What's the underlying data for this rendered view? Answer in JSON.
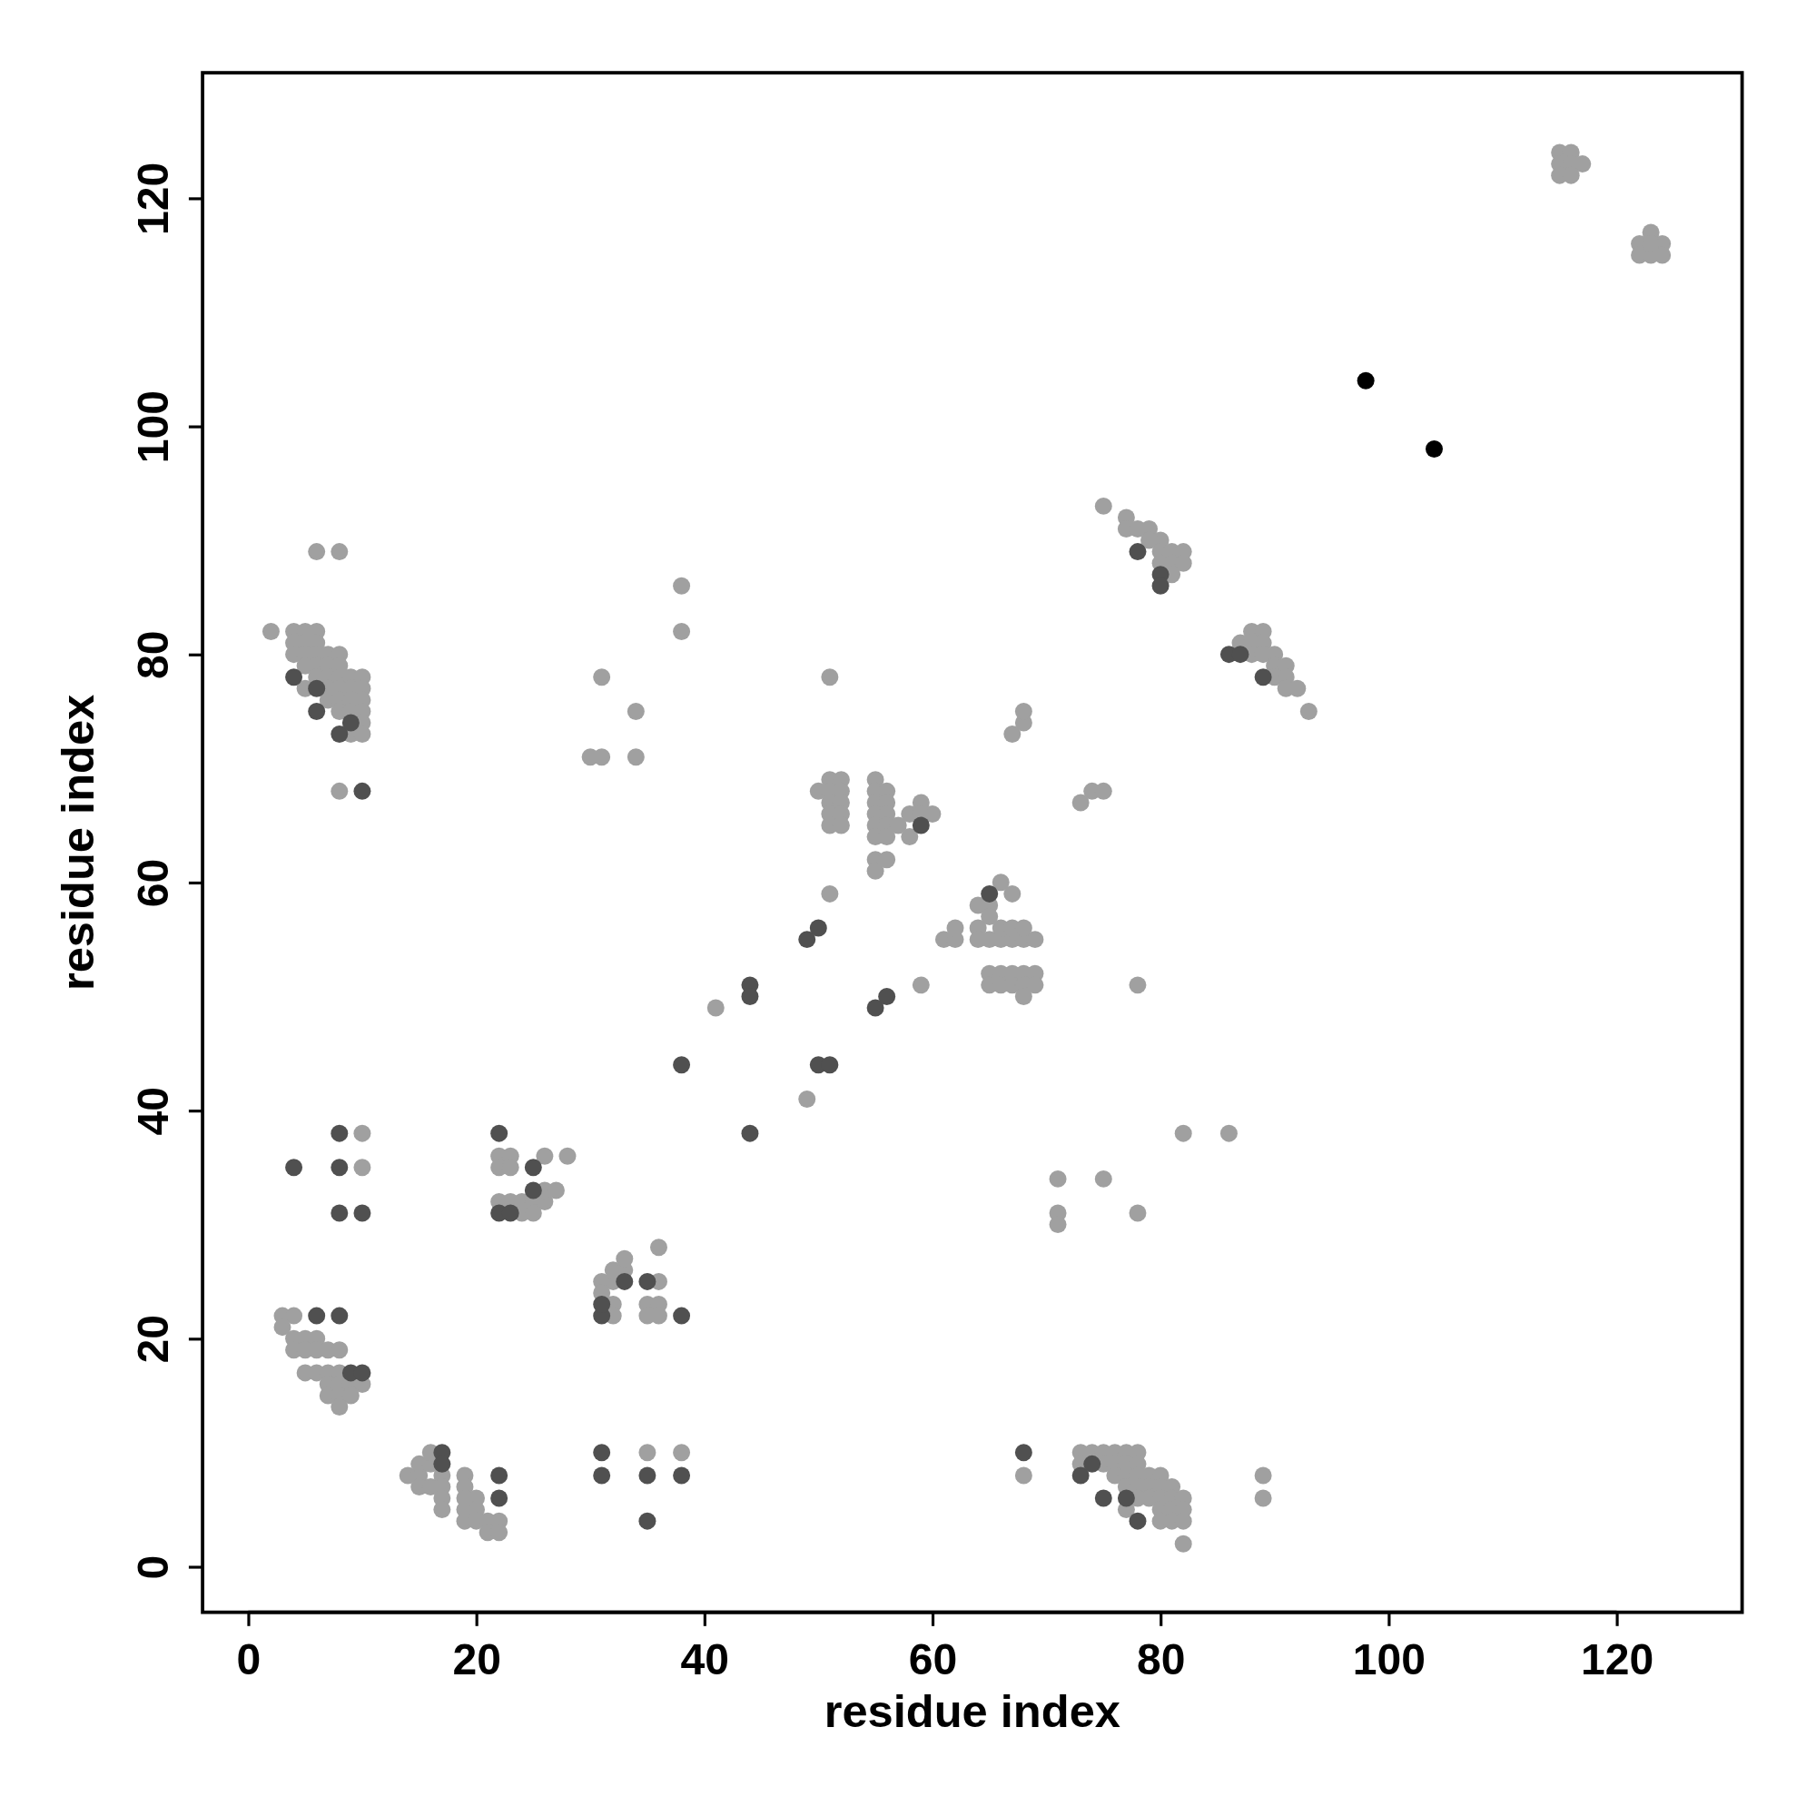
{
  "chart_data": {
    "type": "scatter",
    "xlabel": "residue index",
    "ylabel": "residue index",
    "xlim": [
      -4,
      131
    ],
    "ylim": [
      -4,
      131
    ],
    "xticks": [
      0,
      20,
      40,
      60,
      80,
      100,
      120
    ],
    "yticks": [
      0,
      20,
      40,
      60,
      80,
      100,
      120
    ],
    "marker": "circle",
    "series": [
      {
        "color": "#a0a0a0",
        "x": [
          2,
          4,
          5,
          6,
          4,
          5,
          6,
          4,
          5,
          6,
          7,
          8,
          5,
          6,
          7,
          8,
          6,
          7,
          8,
          9,
          10,
          5,
          7,
          8,
          9,
          10,
          7,
          8,
          9,
          10,
          8,
          9,
          10,
          10,
          9,
          10,
          6,
          8,
          8,
          38,
          38,
          31,
          34,
          30,
          31,
          34,
          51,
          3,
          4,
          3,
          4,
          5,
          6,
          4,
          5,
          6,
          7,
          8,
          5,
          6,
          7,
          8,
          7,
          8,
          9,
          10,
          7,
          8,
          9,
          8,
          10,
          10,
          22,
          23,
          22,
          23,
          26,
          28,
          22,
          23,
          24,
          25,
          26,
          24,
          25,
          26,
          27,
          31,
          32,
          31,
          32,
          33,
          33,
          32,
          32,
          36,
          36,
          35,
          36,
          35,
          36,
          14,
          15,
          15,
          16,
          16,
          15,
          16,
          17,
          17,
          17,
          17,
          19,
          19,
          19,
          20,
          19,
          20,
          19,
          20,
          21,
          22,
          21,
          22,
          35,
          38,
          41,
          49,
          51,
          59,
          50,
          51,
          52,
          51,
          52,
          51,
          52,
          51,
          52,
          51,
          52,
          55,
          55,
          56,
          55,
          56,
          55,
          56,
          55,
          56,
          57,
          55,
          56,
          58,
          58,
          59,
          60,
          59,
          55,
          56,
          55,
          61,
          62,
          62,
          64,
          65,
          66,
          67,
          64,
          64,
          65,
          66,
          67,
          68,
          69,
          65,
          66,
          67,
          68,
          65,
          66,
          67,
          68,
          69,
          65,
          66,
          67,
          68,
          69,
          68,
          67,
          68,
          68,
          73,
          74,
          75,
          78,
          71,
          71,
          71,
          75,
          78,
          82,
          86,
          68,
          89,
          89,
          73,
          74,
          75,
          76,
          77,
          78,
          73,
          75,
          76,
          77,
          78,
          76,
          77,
          78,
          79,
          80,
          77,
          78,
          79,
          80,
          81,
          77,
          78,
          79,
          80,
          81,
          82,
          80,
          81,
          82,
          80,
          81,
          82,
          82,
          75,
          77,
          77,
          78,
          79,
          80,
          79,
          80,
          81,
          82,
          80,
          81,
          82,
          81,
          87,
          88,
          89,
          88,
          89,
          88,
          89,
          90,
          90,
          91,
          90,
          91,
          91,
          92,
          93,
          115,
          116,
          115,
          116,
          117,
          115,
          116,
          122,
          123,
          124,
          122,
          123,
          124,
          123
        ],
        "values": [
          82,
          82,
          82,
          82,
          81,
          81,
          81,
          80,
          80,
          80,
          80,
          80,
          79,
          79,
          79,
          79,
          78,
          78,
          78,
          78,
          78,
          77,
          77,
          77,
          77,
          77,
          76,
          76,
          76,
          76,
          75,
          75,
          75,
          74,
          73,
          73,
          89,
          89,
          68,
          86,
          82,
          78,
          75,
          71,
          71,
          71,
          78,
          22,
          22,
          21,
          20,
          20,
          20,
          19,
          19,
          19,
          19,
          19,
          17,
          17,
          17,
          17,
          16,
          16,
          16,
          16,
          15,
          15,
          15,
          14,
          38,
          35,
          36,
          36,
          35,
          35,
          36,
          36,
          32,
          32,
          32,
          32,
          32,
          31,
          31,
          33,
          33,
          25,
          25,
          24,
          26,
          26,
          27,
          23,
          22,
          28,
          25,
          23,
          23,
          22,
          22,
          8,
          8,
          9,
          9,
          10,
          7,
          7,
          8,
          7,
          6,
          5,
          8,
          7,
          6,
          6,
          5,
          5,
          4,
          4,
          4,
          4,
          3,
          3,
          10,
          10,
          49,
          41,
          59,
          51,
          68,
          69,
          69,
          68,
          68,
          67,
          67,
          66,
          66,
          65,
          65,
          69,
          68,
          68,
          67,
          67,
          66,
          66,
          65,
          65,
          65,
          64,
          64,
          64,
          66,
          67,
          66,
          66,
          62,
          62,
          61,
          55,
          55,
          56,
          58,
          58,
          60,
          59,
          56,
          55,
          55,
          55,
          55,
          55,
          55,
          57,
          56,
          56,
          56,
          52,
          52,
          52,
          52,
          52,
          51,
          51,
          51,
          51,
          51,
          50,
          73,
          74,
          75,
          67,
          68,
          68,
          51,
          34,
          31,
          30,
          34,
          31,
          38,
          38,
          8,
          8,
          6,
          10,
          10,
          10,
          10,
          10,
          10,
          9,
          9,
          9,
          9,
          9,
          8,
          8,
          8,
          8,
          8,
          7,
          7,
          7,
          7,
          7,
          5,
          6,
          6,
          6,
          6,
          6,
          5,
          5,
          5,
          4,
          4,
          4,
          2,
          93,
          92,
          91,
          91,
          91,
          90,
          90,
          89,
          89,
          89,
          88,
          88,
          88,
          87,
          81,
          82,
          82,
          81,
          81,
          80,
          80,
          80,
          79,
          79,
          78,
          78,
          77,
          77,
          75,
          124,
          124,
          123,
          123,
          123,
          122,
          122,
          116,
          117,
          116,
          115,
          115,
          115,
          116
        ]
      },
      {
        "color": "#505050",
        "x": [
          4,
          6,
          6,
          8,
          9,
          10,
          6,
          8,
          9,
          10,
          8,
          4,
          8,
          8,
          10,
          22,
          25,
          25,
          22,
          23,
          31,
          31,
          33,
          35,
          38,
          17,
          17,
          22,
          22,
          31,
          31,
          35,
          38,
          35,
          38,
          44,
          44,
          44,
          49,
          50,
          50,
          51,
          55,
          56,
          59,
          65,
          68,
          73,
          74,
          75,
          77,
          78,
          78,
          80,
          80,
          86,
          87,
          89
        ],
        "values": [
          78,
          77,
          75,
          73,
          74,
          68,
          22,
          22,
          17,
          17,
          38,
          35,
          35,
          31,
          31,
          38,
          35,
          33,
          31,
          31,
          22,
          23,
          25,
          25,
          22,
          10,
          9,
          8,
          6,
          10,
          8,
          8,
          8,
          4,
          44,
          51,
          50,
          38,
          55,
          56,
          44,
          44,
          49,
          50,
          65,
          59,
          10,
          8,
          9,
          6,
          6,
          4,
          89,
          87,
          86,
          80,
          80,
          78
        ]
      },
      {
        "color": "#000000",
        "x": [
          98,
          104
        ],
        "values": [
          104,
          98
        ]
      }
    ]
  }
}
